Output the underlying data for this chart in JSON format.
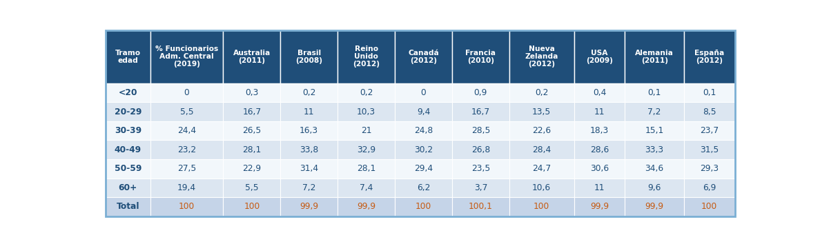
{
  "header_bg": "#1f4e79",
  "header_text_color": "#ffffff",
  "row_bg_white": "#f2f7fb",
  "row_bg_blue": "#dce6f1",
  "total_row_bg": "#c5d4e8",
  "row_label_color": "#1f4e79",
  "data_color": "#1f4e79",
  "total_data_color": "#c55a11",
  "total_label_color": "#1f4e79",
  "border_color": "#7bafd4",
  "headers": [
    "Tramo\nedad",
    "% Funcionarios\nAdm. Central\n(2019)",
    "Australia\n(2011)",
    "Brasil\n(2008)",
    "Reino\nUnido\n(2012)",
    "Canadá\n(2012)",
    "Francia\n(2010)",
    "Nueva\nZelanda\n(2012)",
    "USA\n(2009)",
    "Alemania\n(2011)",
    "España\n(2012)"
  ],
  "rows": [
    [
      "<20",
      "0",
      "0,3",
      "0,2",
      "0,2",
      "0",
      "0,9",
      "0,2",
      "0,4",
      "0,1",
      "0,1"
    ],
    [
      "20-29",
      "5,5",
      "16,7",
      "11",
      "10,3",
      "9,4",
      "16,7",
      "13,5",
      "11",
      "7,2",
      "8,5"
    ],
    [
      "30-39",
      "24,4",
      "26,5",
      "16,3",
      "21",
      "24,8",
      "28,5",
      "22,6",
      "18,3",
      "15,1",
      "23,7"
    ],
    [
      "40-49",
      "23,2",
      "28,1",
      "33,8",
      "32,9",
      "30,2",
      "26,8",
      "28,4",
      "28,6",
      "33,3",
      "31,5"
    ],
    [
      "50-59",
      "27,5",
      "22,9",
      "31,4",
      "28,1",
      "29,4",
      "23,5",
      "24,7",
      "30,6",
      "34,6",
      "29,3"
    ],
    [
      "60+",
      "19,4",
      "5,5",
      "7,2",
      "7,4",
      "6,2",
      "3,7",
      "10,6",
      "11",
      "9,6",
      "6,9"
    ],
    [
      "Total",
      "100",
      "100",
      "99,9",
      "99,9",
      "100",
      "100,1",
      "100",
      "99,9",
      "99,9",
      "100"
    ]
  ],
  "col_widths_rel": [
    0.7,
    1.15,
    0.9,
    0.9,
    0.9,
    0.9,
    0.9,
    1.02,
    0.8,
    0.93,
    0.8
  ],
  "figure_width": 11.88,
  "figure_height": 3.54,
  "dpi": 100
}
